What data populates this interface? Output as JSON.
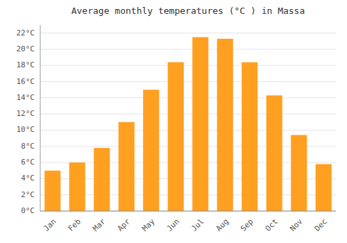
{
  "chart_data": {
    "type": "bar",
    "title": "Average monthly temperatures (°C ) in Massa",
    "categories": [
      "Jan",
      "Feb",
      "Mar",
      "Apr",
      "May",
      "Jun",
      "Jul",
      "Aug",
      "Sep",
      "Oct",
      "Nov",
      "Dec"
    ],
    "values": [
      5.0,
      6.0,
      7.8,
      11.0,
      15.0,
      18.4,
      21.5,
      21.3,
      18.4,
      14.3,
      9.4,
      5.8
    ],
    "color": "#FFA020",
    "ylim": [
      0,
      23
    ],
    "yticks": [
      {
        "value": 0,
        "label": "0°C"
      },
      {
        "value": 2,
        "label": "2°C"
      },
      {
        "value": 4,
        "label": "4°C"
      },
      {
        "value": 6,
        "label": "6°C"
      },
      {
        "value": 8,
        "label": "8°C"
      },
      {
        "value": 10,
        "label": "10°C"
      },
      {
        "value": 12,
        "label": "12°C"
      },
      {
        "value": 14,
        "label": "14°C"
      },
      {
        "value": 16,
        "label": "16°C"
      },
      {
        "value": 18,
        "label": "18°C"
      },
      {
        "value": 20,
        "label": "20°C"
      },
      {
        "value": 22,
        "label": "22°C"
      }
    ],
    "grid": true
  }
}
